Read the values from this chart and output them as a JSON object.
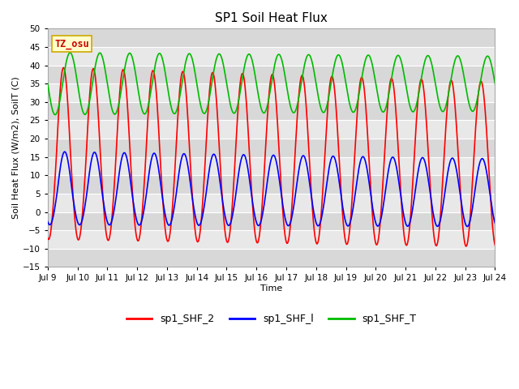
{
  "title": "SP1 Soil Heat Flux",
  "xlabel": "Time",
  "ylabel": "Soil Heat Flux (W/m2), SoilT (C)",
  "ylim": [
    -15,
    50
  ],
  "yticks": [
    -15,
    -10,
    -5,
    0,
    5,
    10,
    15,
    20,
    25,
    30,
    35,
    40,
    45,
    50
  ],
  "xtick_labels": [
    "Jul 9",
    "Jul 10",
    "Jul 11",
    "Jul 12",
    "Jul 13",
    "Jul 14",
    "Jul 15",
    "Jul 16",
    "Jul 17",
    "Jul 18",
    "Jul 19",
    "Jul 20",
    "Jul 21",
    "Jul 22",
    "Jul 23",
    "Jul 24"
  ],
  "fig_bg": "#ffffff",
  "plot_bg": "#e8e8e8",
  "band_colors": [
    "#d8d8d8",
    "#e8e8e8"
  ],
  "grid_color": "#ffffff",
  "legend_items": [
    "sp1_SHF_2",
    "sp1_SHF_l",
    "sp1_SHF_T"
  ],
  "line_colors": [
    "#ff0000",
    "#0000ff",
    "#00bb00"
  ],
  "annotation_text": "TZ_osu",
  "annotation_bg": "#ffffcc",
  "annotation_border": "#ccaa00",
  "annotation_fg": "#cc0000",
  "linewidth": 1.2,
  "title_fontsize": 11,
  "label_fontsize": 8,
  "tick_fontsize": 7.5,
  "legend_fontsize": 9
}
